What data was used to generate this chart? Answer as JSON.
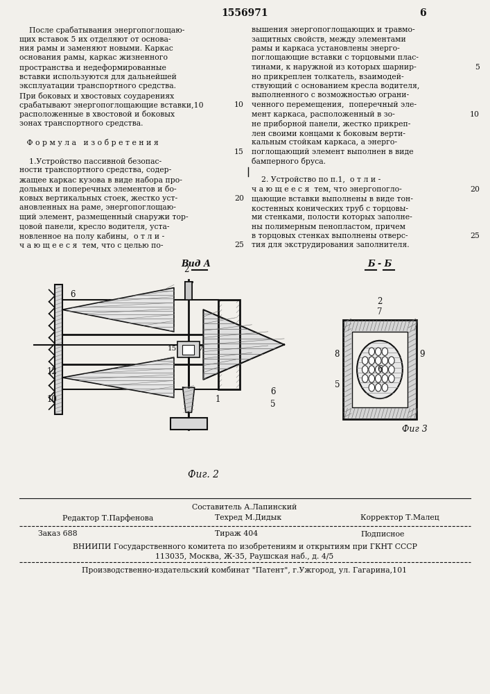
{
  "patent_number": "1556971",
  "page_number": "6",
  "background_color": "#f2f0eb",
  "text_color": "#111111",
  "left_col_lines": [
    "    После срабатывания энергопоглощаю-",
    "щих вставок 5 их отделяют от основа-",
    "ния рамы и заменяют новыми. Каркас",
    "основания рамы, каркас жизненного",
    "пространства и недеформированные",
    "вставки используются для дальнейшей",
    "эксплуатации транспортного средства.",
    "При боковых и хвостовых соударениях",
    "срабатывают энергопоглощающие вставки,10",
    "расположенные в хвостовой и боковых",
    "зонах транспортного средства.",
    "",
    "   Ф о р м у л а   и з о б р е т е н и я",
    "",
    "    1.Устройство пассивной безопас-",
    "ности транспортного средства, содер-",
    "жащее каркас кузова в виде набора про-",
    "дольных и поперечных элементов и бо-",
    "ковых вертикальных стоек, жестко уст-",
    "ановленных на раме, энергопоглощаю-",
    "щий элемент, размещенный снаружи тор-",
    "цовой панели, кресло водителя, уста-",
    "новленное на полу кабины,  о т л и -",
    "ч а ю щ е е с я  тем, что с целью по-"
  ],
  "right_col_lines": [
    "вышения энергопоглощающих и травмо-",
    "защитных свойств, между элементами",
    "рамы и каркаса установлены энерго-",
    "поглощающие вставки с торцовыми плас-",
    "тинами, к наружной из которых шарнир-",
    "но прикреплен толкатель, взаимодей-",
    "ствующий с основанием кресла водителя,",
    "выполненного с возможностью ограни-",
    "ченного перемещения,  поперечный эле-",
    "мент каркаса, расположенный в зо-",
    "не приборной панели, жестко прикреп-",
    "лен своими концами к боковым верти-",
    "кальным стойкам каркаса, а энерго-",
    "поглощающий элемент выполнен в виде",
    "бамперного бруса.",
    "|",
    "    2. Устройство по п.1,  о т л и -",
    "ч а ю щ е е с я  тем, что энергопогло-",
    "щающие вставки выполнены в виде тон-",
    "костенных конических труб с торцовы-",
    "ми стенками, полости которых заполне-",
    "ны полимерным пенопластом, причем",
    "в торцовых стенках выполнены отверс-",
    "тия для экструдирования заполнителя."
  ],
  "line_numbers_left": {
    "8": 9,
    "14": 15,
    "19": 20,
    "23": 25
  },
  "line_numbers_right": {
    "4": 5,
    "9": 10,
    "16": 15,
    "20": 20,
    "23": 25
  },
  "footer": {
    "sestavitel": "Составитель А.Лапинский",
    "redaktor": "Редактор Т.Парфенова",
    "tehred": "Техред М.Дидык",
    "korrektor": "Корректор Т.Малец",
    "zakaz": "Заказ 688",
    "tirazh": "Тираж 404",
    "podpisnoe": "Подписное",
    "vnipi_line1": "ВНИИПИ Государственного комитета по изобретениям и открытиям при ГКНТ СССР",
    "vnipi_line2": "113035, Москва, Ж-35, Раушская наб., д. 4/5",
    "production": "Производственно-издательский комбинат \"Патент\", г.Ужгород, ул. Гагарина,101"
  }
}
